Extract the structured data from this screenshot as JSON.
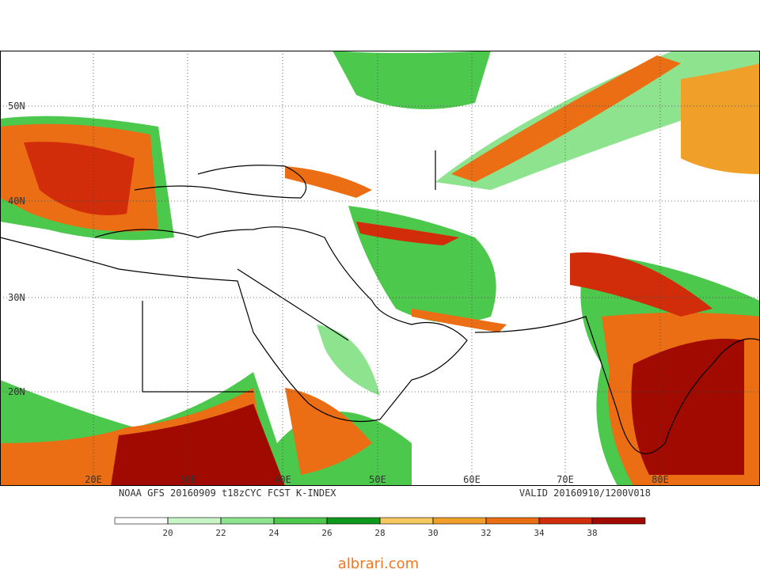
{
  "map": {
    "lat_labels": [
      "50N",
      "40N",
      "30N",
      "20N"
    ],
    "lon_labels": [
      "20E",
      "30E",
      "40E",
      "50E",
      "60E",
      "70E",
      "80E"
    ],
    "caption": {
      "left": "NOAA GFS 20160909 t18zCYC FCST K-INDEX",
      "right": "VALID 20160910/1200V018"
    }
  },
  "colorbar": {
    "colors": [
      "#ffffff",
      "#c8f5c8",
      "#8ee38e",
      "#4cc84c",
      "#0f9a1e",
      "#f5c860",
      "#f0a028",
      "#eb6e14",
      "#d22d0a",
      "#a00a00"
    ],
    "ticks": [
      20,
      22,
      24,
      26,
      28,
      30,
      32,
      34,
      38
    ]
  },
  "watermark": "albrari.com"
}
